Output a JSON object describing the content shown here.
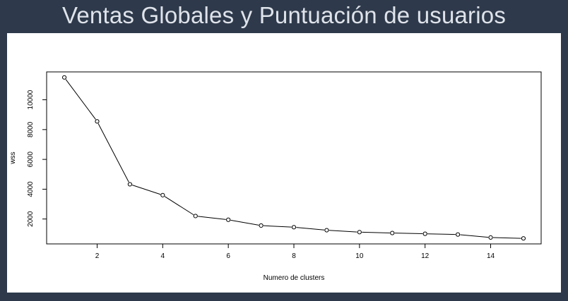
{
  "slide": {
    "title": "Ventas Globales y Puntuación de usuarios"
  },
  "chart_data": {
    "type": "line",
    "title": "",
    "xlabel": "Numero de clusters",
    "ylabel": "wss",
    "x": [
      1,
      2,
      3,
      4,
      5,
      6,
      7,
      8,
      9,
      10,
      11,
      12,
      13,
      14,
      15
    ],
    "series": [
      {
        "values": [
          11500,
          8550,
          4330,
          3600,
          2200,
          1950,
          1560,
          1450,
          1250,
          1120,
          1060,
          1010,
          960,
          760,
          700
        ]
      }
    ],
    "xlim": [
      0.46,
      15.54
    ],
    "ylim": [
      330,
      11870
    ],
    "xticks": [
      2,
      4,
      6,
      8,
      10,
      12,
      14
    ],
    "yticks": [
      2000,
      4000,
      6000,
      8000,
      10000
    ],
    "marker": "open-circle",
    "line_color": "#000000",
    "grid": false,
    "legend": "none"
  }
}
